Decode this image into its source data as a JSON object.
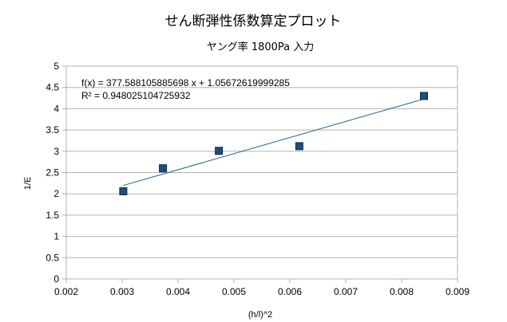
{
  "chart_data": {
    "type": "scatter",
    "title": "せん断弾性係数算定プロット",
    "subtitle": "ヤング率 1800Pa 入力",
    "xlabel": "(h/l)^2",
    "ylabel": "1/E",
    "xlim": [
      0.002,
      0.009
    ],
    "ylim": [
      0,
      5
    ],
    "x_ticks": [
      "0.002",
      "0.003",
      "0.004",
      "0.005",
      "0.006",
      "0.007",
      "0.008",
      "0.009"
    ],
    "y_ticks": [
      "0",
      "0.5",
      "1",
      "1.5",
      "2",
      "2.5",
      "3",
      "3.5",
      "4",
      "4.5",
      "5"
    ],
    "grid": "horizontal",
    "series": [
      {
        "points": [
          {
            "x": 0.00302,
            "y": 2.06
          },
          {
            "x": 0.00373,
            "y": 2.6
          },
          {
            "x": 0.00473,
            "y": 3.01
          },
          {
            "x": 0.00617,
            "y": 3.12
          },
          {
            "x": 0.0084,
            "y": 4.3
          }
        ],
        "color": "#1f4e79"
      }
    ],
    "trendline": {
      "slope": 377.588105885698,
      "intercept": 1.05672619999285,
      "x_range": [
        0.00302,
        0.0084
      ],
      "color": "#1f5f8b",
      "equation": "f(x) = 377.588105885698 x + 1.05672619999285",
      "r_squared": "R² = 0.948025104725932"
    }
  }
}
